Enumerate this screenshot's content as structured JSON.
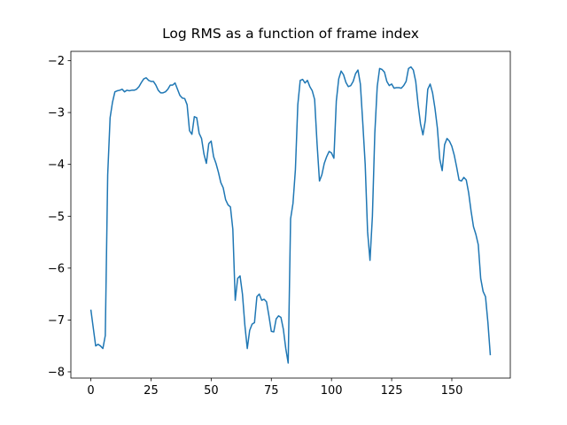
{
  "chart_data": {
    "type": "line",
    "title": "Log RMS as a function of frame index",
    "color": "#1f77b4",
    "x": [
      0,
      1,
      2,
      3,
      4,
      5,
      6,
      7,
      8,
      9,
      10,
      11,
      12,
      13,
      14,
      15,
      16,
      17,
      18,
      19,
      20,
      21,
      22,
      23,
      24,
      25,
      26,
      27,
      28,
      29,
      30,
      31,
      32,
      33,
      34,
      35,
      36,
      37,
      38,
      39,
      40,
      41,
      42,
      43,
      44,
      45,
      46,
      47,
      48,
      49,
      50,
      51,
      52,
      53,
      54,
      55,
      56,
      57,
      58,
      59,
      60,
      61,
      62,
      63,
      64,
      65,
      66,
      67,
      68,
      69,
      70,
      71,
      72,
      73,
      74,
      75,
      76,
      77,
      78,
      79,
      80,
      81,
      82,
      83,
      84,
      85,
      86,
      87,
      88,
      89,
      90,
      91,
      92,
      93,
      94,
      95,
      96,
      97,
      98,
      99,
      100,
      101,
      102,
      103,
      104,
      105,
      106,
      107,
      108,
      109,
      110,
      111,
      112,
      113,
      114,
      115,
      116,
      117,
      118,
      119,
      120,
      121,
      122,
      123,
      124,
      125,
      126,
      127,
      128,
      129,
      130,
      131,
      132,
      133,
      134,
      135,
      136,
      137,
      138,
      139,
      140,
      141,
      142,
      143,
      144,
      145,
      146,
      147,
      148,
      149,
      150,
      151,
      152,
      153,
      154,
      155,
      156,
      157,
      158,
      159,
      160,
      161,
      162,
      163,
      164,
      165,
      166
    ],
    "values": [
      -6.8,
      -7.15,
      -7.5,
      -7.47,
      -7.5,
      -7.55,
      -7.3,
      -4.2,
      -3.1,
      -2.8,
      -2.6,
      -2.58,
      -2.57,
      -2.55,
      -2.6,
      -2.57,
      -2.58,
      -2.57,
      -2.57,
      -2.55,
      -2.5,
      -2.42,
      -2.35,
      -2.33,
      -2.38,
      -2.4,
      -2.4,
      -2.47,
      -2.57,
      -2.62,
      -2.62,
      -2.6,
      -2.55,
      -2.47,
      -2.47,
      -2.43,
      -2.55,
      -2.67,
      -2.72,
      -2.73,
      -2.85,
      -3.35,
      -3.42,
      -3.08,
      -3.1,
      -3.4,
      -3.5,
      -3.8,
      -3.98,
      -3.6,
      -3.55,
      -3.85,
      -3.98,
      -4.15,
      -4.35,
      -4.45,
      -4.68,
      -4.78,
      -4.82,
      -5.25,
      -6.62,
      -6.2,
      -6.15,
      -6.5,
      -7.1,
      -7.55,
      -7.2,
      -7.08,
      -7.05,
      -6.55,
      -6.5,
      -6.62,
      -6.6,
      -6.65,
      -6.92,
      -7.22,
      -7.23,
      -6.98,
      -6.92,
      -6.95,
      -7.18,
      -7.55,
      -7.83,
      -5.05,
      -4.75,
      -4.1,
      -2.85,
      -2.38,
      -2.36,
      -2.43,
      -2.38,
      -2.5,
      -2.58,
      -2.75,
      -3.6,
      -4.32,
      -4.2,
      -3.98,
      -3.85,
      -3.75,
      -3.78,
      -3.88,
      -2.78,
      -2.35,
      -2.2,
      -2.27,
      -2.42,
      -2.5,
      -2.48,
      -2.4,
      -2.25,
      -2.18,
      -2.45,
      -3.2,
      -4.0,
      -5.3,
      -5.85,
      -5.0,
      -3.4,
      -2.5,
      -2.15,
      -2.17,
      -2.22,
      -2.4,
      -2.48,
      -2.45,
      -2.53,
      -2.52,
      -2.52,
      -2.53,
      -2.48,
      -2.4,
      -2.15,
      -2.12,
      -2.18,
      -2.4,
      -2.85,
      -3.22,
      -3.43,
      -3.15,
      -2.55,
      -2.45,
      -2.62,
      -2.92,
      -3.3,
      -3.9,
      -4.12,
      -3.62,
      -3.5,
      -3.55,
      -3.65,
      -3.82,
      -4.05,
      -4.3,
      -4.32,
      -4.25,
      -4.3,
      -4.55,
      -4.9,
      -5.2,
      -5.35,
      -5.55,
      -6.2,
      -6.45,
      -6.55,
      -7.05,
      -7.68
    ],
    "xlim": [
      -8.3,
      174.3
    ],
    "ylim": [
      -8.12,
      -1.82
    ],
    "xticks": [
      0,
      25,
      50,
      75,
      100,
      125,
      150
    ],
    "yticks": [
      {
        "value": -8,
        "label": "−8"
      },
      {
        "value": -7,
        "label": "−7"
      },
      {
        "value": -6,
        "label": "−6"
      },
      {
        "value": -5,
        "label": "−5"
      },
      {
        "value": -4,
        "label": "−4"
      },
      {
        "value": -3,
        "label": "−3"
      },
      {
        "value": -2,
        "label": "−2"
      }
    ]
  }
}
